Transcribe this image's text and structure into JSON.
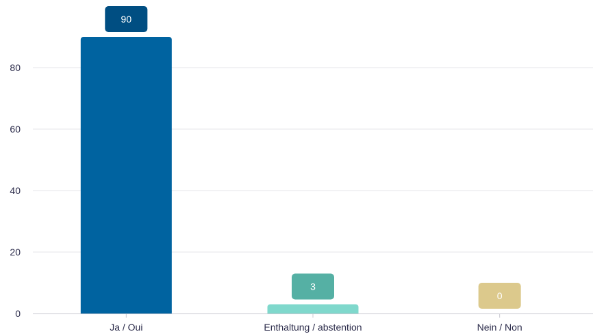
{
  "chart_data": {
    "type": "bar",
    "title": "",
    "xlabel": "",
    "ylabel": "",
    "categories": [
      "Ja / Oui",
      "Enthaltung / abstention",
      "Nein / Non"
    ],
    "values": [
      90,
      3,
      0
    ],
    "data_labels": [
      "90",
      "3",
      "0"
    ],
    "ylim": [
      0,
      90
    ],
    "yticks": [
      0,
      20,
      40,
      60,
      80
    ],
    "grid": true,
    "legend": "none",
    "colors": {
      "bars": [
        "#0063a0",
        "#7fd8cc",
        "#efe3b3"
      ],
      "data_label_backgrounds": [
        "#004e82",
        "#55b0a4",
        "#dcc98c"
      ],
      "grid": "#e6e6ea",
      "axis": "#c8c8d0",
      "text": "#2b2b4a"
    }
  }
}
